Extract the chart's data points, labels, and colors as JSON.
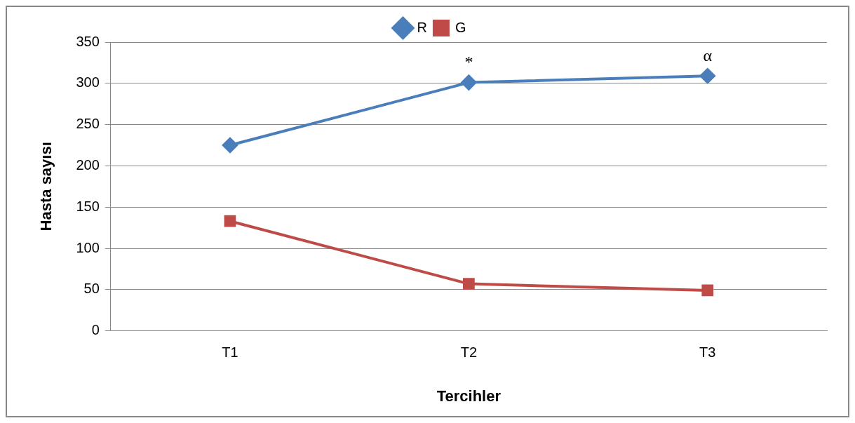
{
  "chart_data": {
    "type": "line",
    "xlabel": "Tercihler",
    "ylabel": "Hasta sayısı",
    "categories": [
      "T1",
      "T2",
      "T3"
    ],
    "series": [
      {
        "name": "R",
        "color": "#4a7ebb",
        "values": [
          225,
          301,
          309
        ],
        "marker": "diamond"
      },
      {
        "name": "G",
        "color": "#be4b48",
        "values": [
          133,
          57,
          49
        ],
        "marker": "square"
      }
    ],
    "ylim": [
      0,
      350
    ],
    "yticks": [
      0,
      50,
      100,
      150,
      200,
      250,
      300,
      350
    ],
    "grid": "y",
    "legend": "top",
    "annotations": [
      {
        "text": "*",
        "x": "T2",
        "y": 301
      },
      {
        "text": "α",
        "x": "T3",
        "y": 309
      }
    ]
  }
}
